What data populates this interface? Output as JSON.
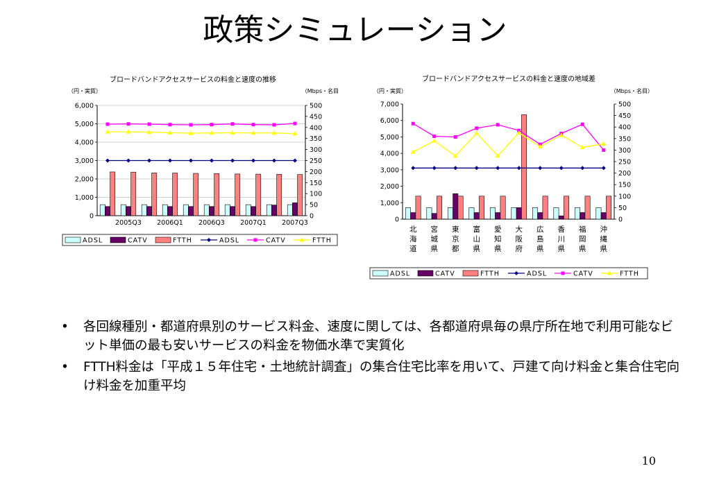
{
  "slide": {
    "title": "政策シミュレーション",
    "bullets": [
      "各回線種別・都道府県別のサービス料金、速度に関しては、各都道府県毎の県庁所在地で利用可能なビット単価の最も安いサービスの料金を物価水準で実質化",
      "FTTH料金は「平成１５年住宅・土地統計調査」の集合住宅比率を用いて、戸建て向け料金と集合住宅向け料金を加重平均"
    ],
    "bullet_symbol": "•",
    "page_number": "10"
  },
  "chart_data": [
    {
      "type": "bar",
      "title": "ブロードバンドアクセスサービスの料金と速度の推移",
      "ylabel": "（円・実質）",
      "y2label": "（Mbps・名目）",
      "ylim": [
        0,
        6000
      ],
      "yticks": [
        "6,000",
        "5,000",
        "4,000",
        "3,000",
        "2,000",
        "1,000",
        "0"
      ],
      "y2lim": [
        0,
        500
      ],
      "y2ticks": [
        "500",
        "450",
        "400",
        "350",
        "300",
        "250",
        "200",
        "150",
        "100",
        "50",
        "0"
      ],
      "categories": [
        "",
        "2005Q3",
        "",
        "2006Q1",
        "",
        "2006Q3",
        "",
        "2007Q1",
        "",
        "2007Q3"
      ],
      "bar_series": [
        {
          "name": "ADSL",
          "values": [
            600,
            600,
            600,
            600,
            600,
            600,
            600,
            600,
            600,
            600
          ]
        },
        {
          "name": "CATV",
          "values": [
            500,
            500,
            500,
            500,
            500,
            500,
            500,
            500,
            580,
            700
          ]
        },
        {
          "name": "FTTH",
          "values": [
            2380,
            2370,
            2330,
            2320,
            2300,
            2290,
            2270,
            2260,
            2250,
            2240
          ]
        }
      ],
      "line_series": [
        {
          "name": "ADSL",
          "axis": "right",
          "values": [
            250,
            250,
            250,
            250,
            250,
            250,
            250,
            250,
            250,
            250
          ]
        },
        {
          "name": "CATV",
          "axis": "right",
          "values": [
            415,
            416,
            415,
            413,
            412,
            413,
            416,
            413,
            412,
            418
          ]
        },
        {
          "name": "FTTH",
          "axis": "right",
          "values": [
            380,
            380,
            379,
            376,
            374,
            375,
            376,
            375,
            375,
            372
          ]
        }
      ],
      "legend": [
        "ADSL",
        "CATV",
        "FTTH",
        "ADSL",
        "CATV",
        "FTTH"
      ],
      "grid": true,
      "legend_position": "bottom"
    },
    {
      "type": "bar",
      "title": "ブロードバンドアクセスサービスの料金と速度の地域差",
      "ylabel": "（円・実質）",
      "y2label": "（Mbps・名目）",
      "ylim": [
        0,
        7000
      ],
      "yticks": [
        "7,000",
        "6,000",
        "5,000",
        "4,000",
        "3,000",
        "2,000",
        "1,000",
        "0"
      ],
      "y2lim": [
        0,
        500
      ],
      "y2ticks": [
        "500",
        "450",
        "400",
        "350",
        "300",
        "250",
        "200",
        "150",
        "100",
        "50",
        "0"
      ],
      "categories": [
        "北海道",
        "宮城県",
        "東京都",
        "富山県",
        "愛知県",
        "大阪府",
        "広島県",
        "香川県",
        "福岡県",
        "沖縄県"
      ],
      "bar_series": [
        {
          "name": "ADSL",
          "values": [
            700,
            700,
            700,
            700,
            700,
            700,
            700,
            700,
            700,
            700
          ]
        },
        {
          "name": "CATV",
          "values": [
            400,
            350,
            1550,
            400,
            400,
            700,
            400,
            200,
            400,
            400
          ]
        },
        {
          "name": "FTTH",
          "values": [
            1400,
            1400,
            1400,
            1400,
            1400,
            6350,
            1400,
            1400,
            1400,
            1400
          ]
        }
      ],
      "line_series": [
        {
          "name": "ADSL",
          "axis": "right",
          "values": [
            222,
            222,
            222,
            222,
            222,
            222,
            222,
            222,
            222,
            222
          ]
        },
        {
          "name": "CATV",
          "axis": "right",
          "values": [
            415,
            360,
            357,
            395,
            410,
            385,
            325,
            372,
            412,
            300
          ]
        },
        {
          "name": "FTTH",
          "axis": "right",
          "values": [
            292,
            340,
            275,
            373,
            275,
            375,
            315,
            365,
            312,
            327
          ]
        }
      ],
      "legend": [
        "ADSL",
        "CATV",
        "FTTH",
        "ADSL",
        "CATV",
        "FTTH"
      ],
      "grid": false,
      "legend_position": "bottom"
    }
  ],
  "colors": {
    "bar_adsl": "#ccffff",
    "bar_catv": "#660066",
    "bar_ftth": "#ff8080",
    "line_adsl": "#000080",
    "line_catv": "#ff00ff",
    "line_ftth": "#ffff00"
  }
}
